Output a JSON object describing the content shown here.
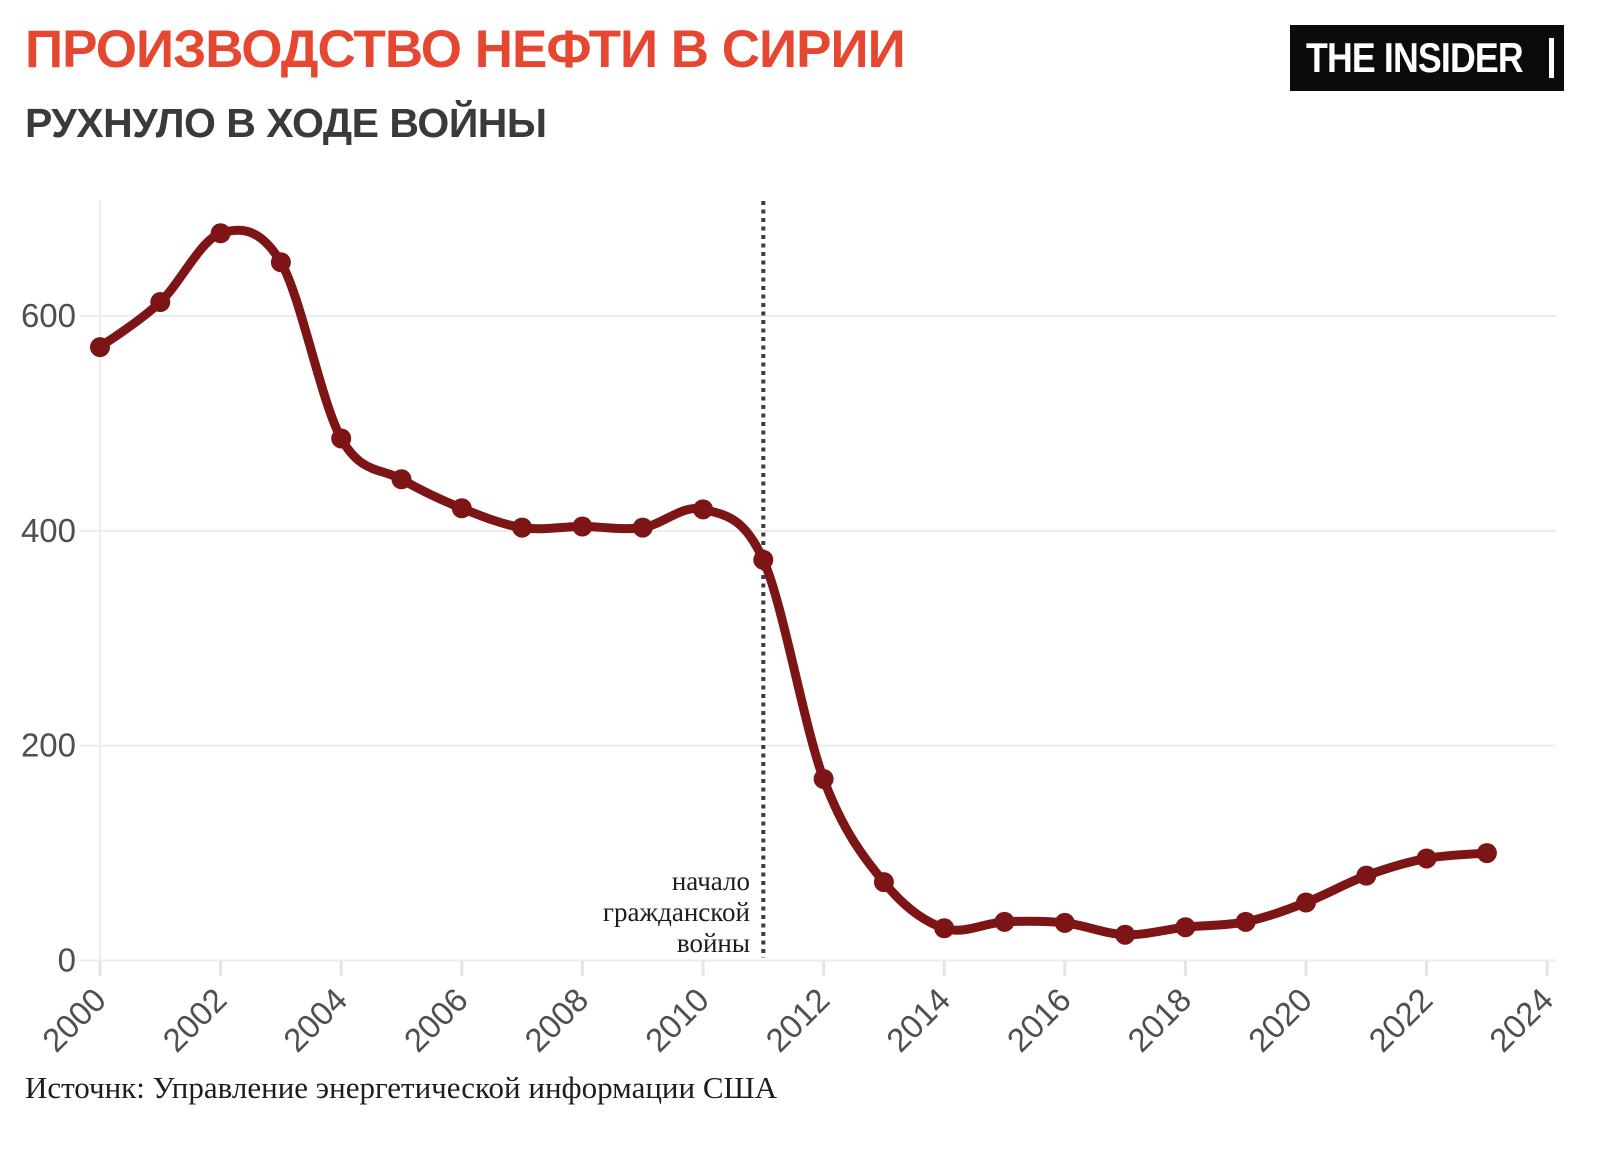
{
  "header": {
    "title": "ПРОИЗВОДСТВО НЕФТИ В СИРИИ",
    "subtitle": "РУХНУЛО В ХОДЕ ВОЙНЫ",
    "logo_text": "THE INSIDER",
    "title_color": "#E64731"
  },
  "footer": {
    "source": "Источнк: Управление энергетической информации США"
  },
  "annotation": {
    "lines": [
      "начало",
      "гражданской",
      "войны"
    ],
    "event_year": 2011
  },
  "chart_data": {
    "type": "line",
    "title": "ПРОИЗВОДСТВО НЕФТИ В СИРИИ",
    "subtitle": "РУХНУЛО В ХОДЕ ВОЙНЫ",
    "xlabel": "",
    "ylabel": "",
    "x": [
      2000,
      2001,
      2002,
      2003,
      2004,
      2005,
      2006,
      2007,
      2008,
      2009,
      2010,
      2011,
      2012,
      2013,
      2014,
      2015,
      2016,
      2017,
      2018,
      2019,
      2020,
      2021,
      2022,
      2023
    ],
    "values": [
      571,
      613,
      677,
      650,
      486,
      448,
      421,
      403,
      404,
      403,
      420,
      373,
      169,
      73,
      30,
      36,
      35,
      24,
      31,
      36,
      54,
      79,
      95,
      100
    ],
    "x_ticks": [
      2000,
      2002,
      2004,
      2006,
      2008,
      2010,
      2012,
      2014,
      2016,
      2018,
      2020,
      2022,
      2024
    ],
    "y_ticks": [
      0,
      200,
      400,
      600
    ],
    "xlim": [
      2000,
      2024
    ],
    "ylim": [
      0,
      710
    ],
    "grid": "horizontal",
    "legend": "none",
    "event_line_x": 2011,
    "line_color": "#7D1415",
    "point_color": "#7D1415",
    "grid_color": "#ececec",
    "tick_label_color": "#4f4f4f",
    "event_line_color": "#3c3c3c"
  }
}
